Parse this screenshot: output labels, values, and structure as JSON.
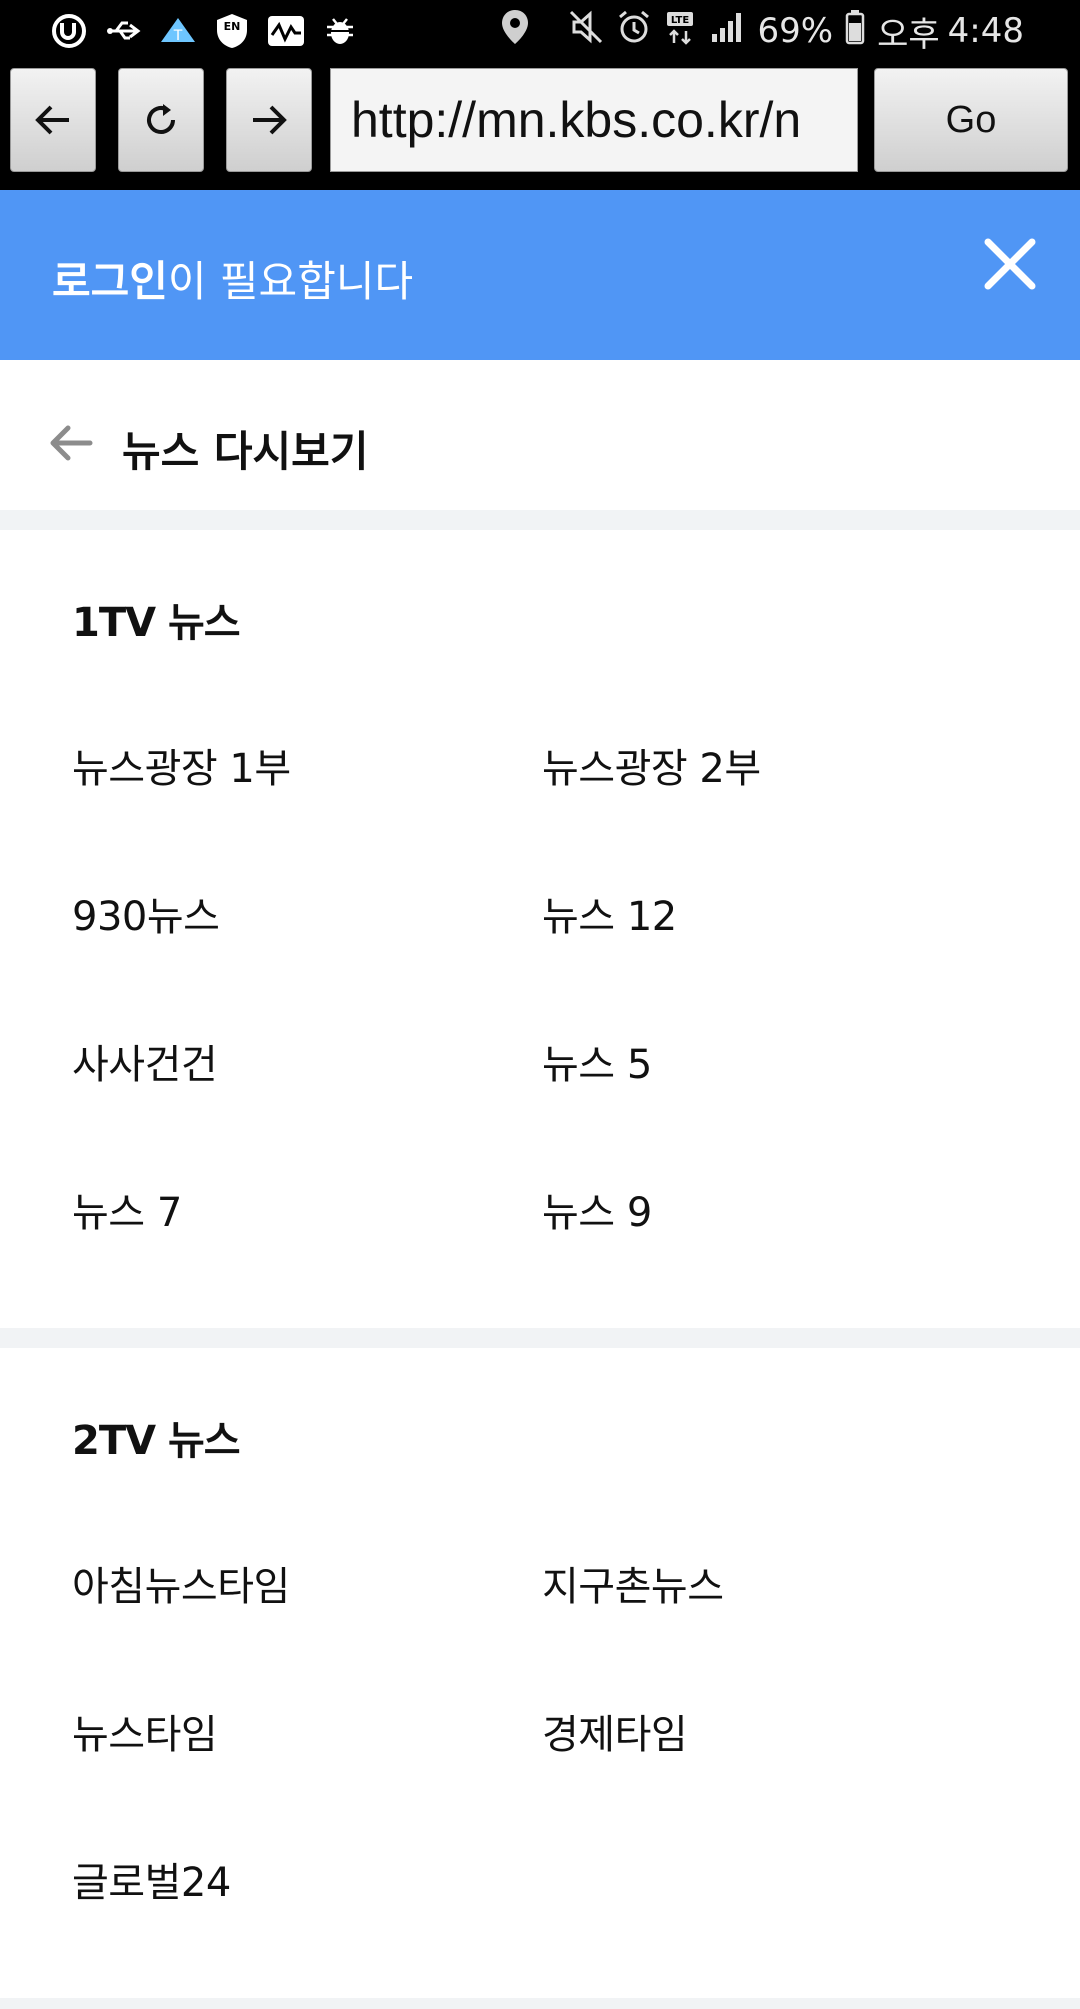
{
  "status_bar": {
    "battery": "69%",
    "ampm": "오후",
    "time": "4:48",
    "left_icons": [
      "u-plus-icon",
      "usb-icon",
      "tmap-icon",
      "en-shield-icon",
      "activity-icon",
      "bug-icon"
    ],
    "right_icons": [
      "location-icon",
      "mute-icon",
      "alarm-icon",
      "lte-icon",
      "signal-icon",
      "battery-icon"
    ]
  },
  "browser": {
    "url": "http://mn.kbs.co.kr/n",
    "go_label": "Go"
  },
  "banner": {
    "bold_text": "로그인",
    "text": "이 필요합니다",
    "color": "#5096f5"
  },
  "header": {
    "title": "뉴스 다시보기"
  },
  "sections": [
    {
      "title": "1TV 뉴스",
      "items": [
        "뉴스광장 1부",
        "뉴스광장 2부",
        "930뉴스",
        "뉴스 12",
        "사사건건",
        "뉴스 5",
        "뉴스 7",
        "뉴스 9"
      ]
    },
    {
      "title": "2TV 뉴스",
      "items": [
        "아침뉴스타임",
        "지구촌뉴스",
        "뉴스타임",
        "경제타임",
        "글로벌24"
      ]
    }
  ]
}
